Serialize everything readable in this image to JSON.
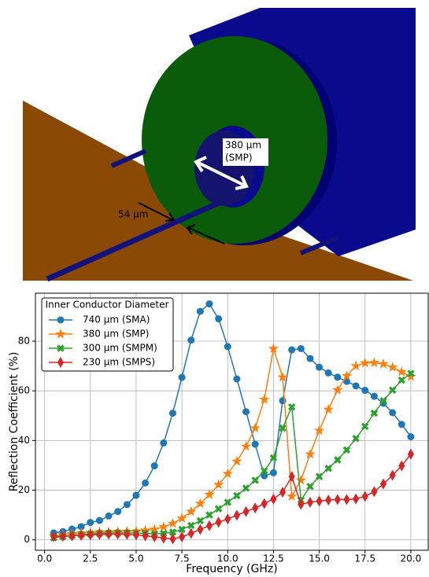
{
  "illustration": {
    "labels": [
      "380 μm",
      "(SMP)",
      "54 μm"
    ]
  },
  "chart_data": {
    "type": "line",
    "xlabel": "Frequency (GHz)",
    "ylabel": "Reflection Coefficient (%)",
    "x": [
      0.5,
      1,
      1.5,
      2,
      2.5,
      3,
      3.5,
      4,
      4.5,
      5,
      5.5,
      6,
      6.5,
      7,
      7.5,
      8,
      8.5,
      9,
      9.5,
      10,
      10.5,
      11,
      11.5,
      12,
      12.5,
      13,
      13.5,
      14,
      14.5,
      15,
      15.5,
      16,
      16.5,
      17,
      17.5,
      18,
      18.5,
      19,
      19.5,
      20
    ],
    "xlim": [
      -0.5,
      20.95
    ],
    "ylim": [
      -4.2,
      99.3
    ],
    "xticks": [
      {
        "value": 0,
        "label": "0.0"
      },
      2.5,
      {
        "value": 5,
        "label": "5.0"
      },
      7.5,
      {
        "value": 10,
        "label": "10.0"
      },
      12.5,
      {
        "value": 15,
        "label": "15.0"
      },
      17.5,
      {
        "value": 20,
        "label": "20.0"
      }
    ],
    "yticks": [
      0,
      20,
      40,
      60,
      80
    ],
    "grid": true,
    "legend_title": "Inner Conductor Diameter",
    "legend_position": "upper-left",
    "series": [
      {
        "name": "740 μm (SMA)",
        "color": "#1f77b4",
        "marker": "circle",
        "values": [
          2.8,
          3.3,
          4.3,
          5.3,
          7,
          7.8,
          9.6,
          11.4,
          14.2,
          17.9,
          22.9,
          29.8,
          39,
          51,
          65.4,
          80.4,
          92,
          95,
          89,
          77.8,
          64.8,
          51.6,
          38.5,
          25.8,
          27,
          56,
          76.5,
          77,
          73,
          69.5,
          67.2,
          65.5,
          63.8,
          62,
          60.2,
          57.8,
          55,
          51.2,
          46.5,
          41.5
        ]
      },
      {
        "name": "380 μm (SMP)",
        "color": "#ff7f0e",
        "marker": "star",
        "values": [
          1.5,
          2,
          2.4,
          2.7,
          2.9,
          3.1,
          3.2,
          3.3,
          3.4,
          3.5,
          3.8,
          4.2,
          5.2,
          6.6,
          8.7,
          11.4,
          14.6,
          18.2,
          22.2,
          26.6,
          31.6,
          37.6,
          45,
          56.5,
          77,
          65.5,
          17.5,
          24,
          34.5,
          44,
          52.5,
          60.3,
          66,
          70,
          71.2,
          71.3,
          70.8,
          69.5,
          67.6,
          65.7
        ]
      },
      {
        "name": "300 μm (SMPM)",
        "color": "#2ca02c",
        "marker": "x",
        "values": [
          0.8,
          1.3,
          1.7,
          2.1,
          2.4,
          2.6,
          2.7,
          2.8,
          2.8,
          2.7,
          2.6,
          2.4,
          2.6,
          3.1,
          4.2,
          5.8,
          7.7,
          10,
          12.5,
          15.1,
          17.8,
          20.8,
          24,
          27.8,
          33,
          45,
          53.5,
          16,
          21.5,
          25.5,
          28.8,
          32.2,
          36.2,
          40.8,
          45.7,
          51,
          56,
          60.3,
          64.3,
          67
        ]
      },
      {
        "name": "230 μm (SMPS)",
        "color": "#d62728",
        "marker": "diamond",
        "values": [
          1.3,
          1.4,
          1.6,
          1.8,
          2,
          2.2,
          2.3,
          2.3,
          2.2,
          2,
          1.6,
          1.2,
          0.7,
          0.4,
          1.2,
          2.6,
          4.2,
          5.7,
          7.1,
          8.4,
          9.9,
          11.4,
          12.8,
          14.6,
          16.4,
          19.2,
          25.5,
          14.3,
          15.1,
          15.6,
          16,
          16.2,
          16.2,
          16.5,
          17.5,
          19.4,
          22.5,
          26,
          29.8,
          34.5
        ]
      }
    ]
  }
}
